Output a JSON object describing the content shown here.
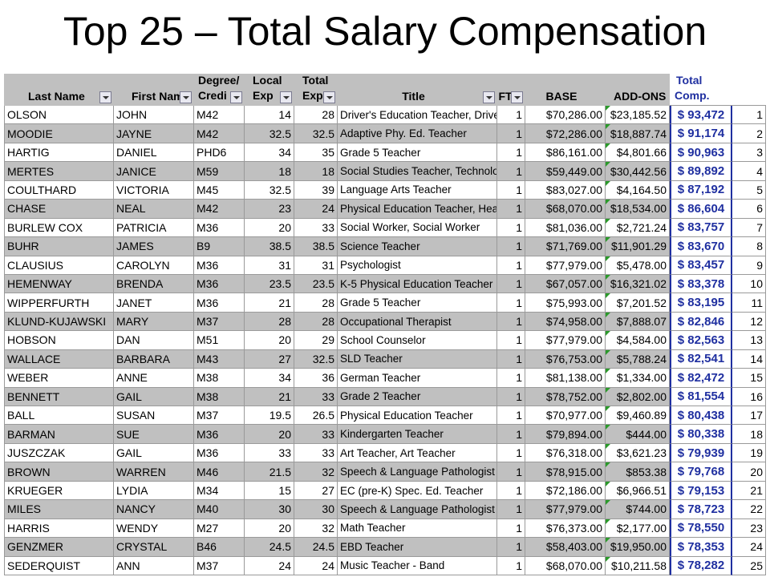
{
  "title": "Top 25 – Total Salary Compensation",
  "table": {
    "headers": [
      [
        "Last Name"
      ],
      [
        "First Name"
      ],
      [
        "Degree/",
        "Credi"
      ],
      [
        "Local",
        "Exp"
      ],
      [
        "Total",
        "Exp"
      ],
      [
        "Title"
      ],
      [
        "FT"
      ],
      [
        "BASE"
      ],
      [
        "ADD-ONS"
      ],
      [
        "Total",
        "Comp."
      ]
    ],
    "rows": [
      [
        "OLSON",
        "JOHN",
        "M42",
        "14",
        "28",
        "Driver's Education Teacher, Driver'",
        "1",
        "$70,286.00",
        "$23,185.52",
        "$ 93,472",
        "1"
      ],
      [
        "MOODIE",
        "JAYNE",
        "M42",
        "32.5",
        "32.5",
        "Adaptive Phy. Ed. Teacher",
        "1",
        "$72,286.00",
        "$18,887.74",
        "$ 91,174",
        "2"
      ],
      [
        "HARTIG",
        "DANIEL",
        "PHD6",
        "34",
        "35",
        "Grade 5 Teacher",
        "1",
        "$86,161.00",
        "$4,801.66",
        "$ 90,963",
        "3"
      ],
      [
        "MERTES",
        "JANICE",
        "M59",
        "18",
        "18",
        "Social Studies Teacher, Technolo",
        "1",
        "$59,449.00",
        "$30,442.56",
        "$ 89,892",
        "4"
      ],
      [
        "COULTHARD",
        "VICTORIA",
        "M45",
        "32.5",
        "39",
        "Language Arts Teacher",
        "1",
        "$83,027.00",
        "$4,164.50",
        "$ 87,192",
        "5"
      ],
      [
        "CHASE",
        "NEAL",
        "M42",
        "23",
        "24",
        "Physical Education Teacher, Heal",
        "1",
        "$68,070.00",
        "$18,534.00",
        "$ 86,604",
        "6"
      ],
      [
        "BURLEW COX",
        "PATRICIA",
        "M36",
        "20",
        "33",
        "Social Worker, Social Worker",
        "1",
        "$81,036.00",
        "$2,721.24",
        "$ 83,757",
        "7"
      ],
      [
        "BUHR",
        "JAMES",
        "B9",
        "38.5",
        "38.5",
        "Science Teacher",
        "1",
        "$71,769.00",
        "$11,901.29",
        "$ 83,670",
        "8"
      ],
      [
        "CLAUSIUS",
        "CAROLYN",
        "M36",
        "31",
        "31",
        "Psychologist",
        "1",
        "$77,979.00",
        "$5,478.00",
        "$ 83,457",
        "9"
      ],
      [
        "HEMENWAY",
        "BRENDA",
        "M36",
        "23.5",
        "23.5",
        "K-5 Physical Education Teacher",
        "1",
        "$67,057.00",
        "$16,321.02",
        "$ 83,378",
        "10"
      ],
      [
        "WIPPERFURTH",
        "JANET",
        "M36",
        "21",
        "28",
        "Grade 5 Teacher",
        "1",
        "$75,993.00",
        "$7,201.52",
        "$ 83,195",
        "11"
      ],
      [
        "KLUND-KUJAWSKI",
        "MARY",
        "M37",
        "28",
        "28",
        "Occupational Therapist",
        "1",
        "$74,958.00",
        "$7,888.07",
        "$ 82,846",
        "12"
      ],
      [
        "HOBSON",
        "DAN",
        "M51",
        "20",
        "29",
        "School Counselor",
        "1",
        "$77,979.00",
        "$4,584.00",
        "$ 82,563",
        "13"
      ],
      [
        "WALLACE",
        "BARBARA",
        "M43",
        "27",
        "32.5",
        "SLD Teacher",
        "1",
        "$76,753.00",
        "$5,788.24",
        "$ 82,541",
        "14"
      ],
      [
        "WEBER",
        "ANNE",
        "M38",
        "34",
        "36",
        "German Teacher",
        "1",
        "$81,138.00",
        "$1,334.00",
        "$ 82,472",
        "15"
      ],
      [
        "BENNETT",
        "GAIL",
        "M38",
        "21",
        "33",
        "Grade 2 Teacher",
        "1",
        "$78,752.00",
        "$2,802.00",
        "$ 81,554",
        "16"
      ],
      [
        "BALL",
        "SUSAN",
        "M37",
        "19.5",
        "26.5",
        "Physical Education Teacher",
        "1",
        "$70,977.00",
        "$9,460.89",
        "$ 80,438",
        "17"
      ],
      [
        "BARMAN",
        "SUE",
        "M36",
        "20",
        "33",
        "Kindergarten Teacher",
        "1",
        "$79,894.00",
        "$444.00",
        "$ 80,338",
        "18"
      ],
      [
        "JUSZCZAK",
        "GAIL",
        "M36",
        "33",
        "33",
        "Art Teacher, Art Teacher",
        "1",
        "$76,318.00",
        "$3,621.23",
        "$ 79,939",
        "19"
      ],
      [
        "BROWN",
        "WARREN",
        "M46",
        "21.5",
        "32",
        "Speech & Language Pathologist",
        "1",
        "$78,915.00",
        "$853.38",
        "$ 79,768",
        "20"
      ],
      [
        "KRUEGER",
        "LYDIA",
        "M34",
        "15",
        "27",
        "EC (pre-K) Spec. Ed. Teacher",
        "1",
        "$72,186.00",
        "$6,966.51",
        "$ 79,153",
        "21"
      ],
      [
        "MILES",
        "NANCY",
        "M40",
        "30",
        "30",
        "Speech & Language Pathologist",
        "1",
        "$77,979.00",
        "$744.00",
        "$ 78,723",
        "22"
      ],
      [
        "HARRIS",
        "WENDY",
        "M27",
        "20",
        "32",
        "Math Teacher",
        "1",
        "$76,373.00",
        "$2,177.00",
        "$ 78,550",
        "23"
      ],
      [
        "GENZMER",
        "CRYSTAL",
        "B46",
        "24.5",
        "24.5",
        "EBD Teacher",
        "1",
        "$58,403.00",
        "$19,950.00",
        "$ 78,353",
        "24"
      ],
      [
        "SEDERQUIST",
        "ANN",
        "M37",
        "24",
        "24",
        "Music Teacher - Band",
        "1",
        "$68,070.00",
        "$10,211.58",
        "$ 78,282",
        "25"
      ]
    ]
  }
}
